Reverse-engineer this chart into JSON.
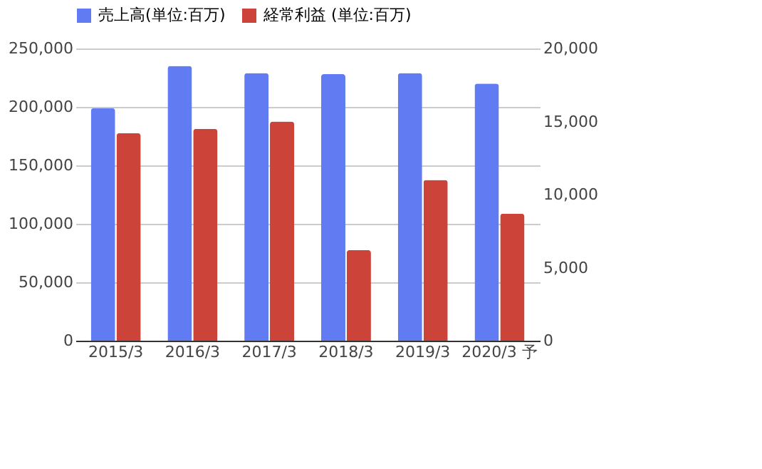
{
  "chart_data": {
    "type": "bar",
    "categories": [
      "2015/3",
      "2016/3",
      "2017/3",
      "2018/3",
      "2019/3",
      "2020/3 予"
    ],
    "series": [
      {
        "name": "売上高(単位:百万)",
        "color": "#617cf2",
        "values": [
          199000,
          235000,
          229000,
          228000,
          229000,
          220000
        ]
      },
      {
        "name": "経常利益 (単位:百万)",
        "color": "#cc433a",
        "values": [
          14200,
          14500,
          15000,
          6200,
          11000,
          8700
        ],
        "axis": "y2"
      }
    ],
    "ylim": [
      0,
      250000
    ],
    "yticks": [
      0,
      {
        "value": 50000,
        "label": "50,000"
      },
      {
        "value": 100000,
        "label": "100,000"
      },
      {
        "value": 150000,
        "label": "150,000"
      },
      {
        "value": 200000,
        "label": "200,000"
      },
      {
        "value": 250000,
        "label": "250,000"
      }
    ],
    "y2lim": [
      0,
      20000
    ],
    "y2ticks": [
      0,
      {
        "value": 5000,
        "label": "5,000"
      },
      {
        "value": 10000,
        "label": "10,000"
      },
      {
        "value": 15000,
        "label": "15,000"
      },
      {
        "value": 20000,
        "label": "20,000"
      }
    ],
    "grid": "y",
    "legend": "top"
  }
}
